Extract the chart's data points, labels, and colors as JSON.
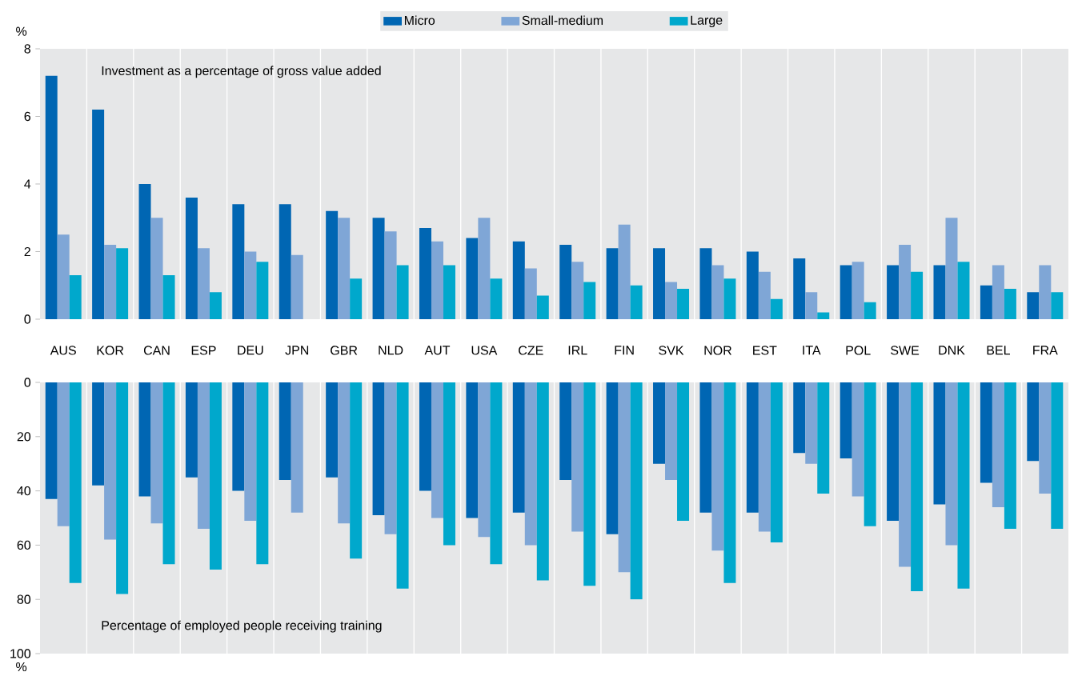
{
  "chart_data": [
    {
      "type": "bar",
      "ylabel": "%",
      "annotations": [
        "Investment as a percentage of gross value added"
      ],
      "categories": [
        "AUS",
        "KOR",
        "CAN",
        "ESP",
        "DEU",
        "JPN",
        "GBR",
        "NLD",
        "AUT",
        "USA",
        "CZE",
        "IRL",
        "FIN",
        "SVK",
        "NOR",
        "EST",
        "ITA",
        "POL",
        "SWE",
        "DNK",
        "BEL",
        "FRA"
      ],
      "series": [
        {
          "name": "Micro",
          "color": "#0066b3",
          "values": [
            7.2,
            6.2,
            4.0,
            3.6,
            3.4,
            3.4,
            3.2,
            3.0,
            2.7,
            2.4,
            2.3,
            2.2,
            2.1,
            2.1,
            2.1,
            2.0,
            1.8,
            1.6,
            1.6,
            1.6,
            1.0,
            0.8
          ]
        },
        {
          "name": "Small-medium",
          "color": "#7fa6d6",
          "values": [
            2.5,
            2.2,
            3.0,
            2.1,
            2.0,
            1.9,
            3.0,
            2.6,
            2.3,
            3.0,
            1.5,
            1.7,
            2.8,
            1.1,
            1.6,
            1.4,
            0.8,
            1.7,
            2.2,
            3.0,
            1.6,
            1.6
          ]
        },
        {
          "name": "Large",
          "color": "#00a8cc",
          "values": [
            1.3,
            2.1,
            1.3,
            0.8,
            1.7,
            null,
            1.2,
            1.6,
            1.6,
            1.2,
            0.7,
            1.1,
            1.0,
            0.9,
            1.2,
            0.6,
            0.2,
            0.5,
            1.4,
            1.7,
            0.9,
            0.8
          ]
        }
      ],
      "ylim": [
        0,
        8
      ],
      "yticks": [
        0,
        2,
        4,
        6,
        8
      ],
      "grid": "x",
      "legend": "top"
    },
    {
      "type": "bar",
      "ylabel": "%",
      "annotations": [
        "Percentage of employed people receiving  training"
      ],
      "categories": [
        null,
        null,
        null,
        null,
        null,
        null,
        null,
        null,
        null,
        null,
        null,
        null,
        null,
        null,
        null,
        null,
        null,
        null,
        null,
        null,
        null,
        null
      ],
      "series": [
        {
          "color": "#0066b3",
          "values": [
            43,
            38,
            42,
            35,
            40,
            36,
            35,
            49,
            40,
            50,
            48,
            36,
            56,
            30,
            48,
            48,
            26,
            28,
            51,
            45,
            37,
            29
          ]
        },
        {
          "color": "#7fa6d6",
          "values": [
            53,
            58,
            52,
            54,
            51,
            48,
            52,
            56,
            50,
            57,
            60,
            55,
            70,
            36,
            62,
            55,
            30,
            42,
            68,
            60,
            46,
            41
          ]
        },
        {
          "color": "#00a8cc",
          "values": [
            74,
            78,
            67,
            69,
            67,
            null,
            65,
            76,
            60,
            67,
            73,
            75,
            80,
            51,
            74,
            59,
            41,
            53,
            77,
            76,
            54,
            54
          ]
        }
      ],
      "ylim": [
        100,
        0
      ],
      "yticks": [
        0,
        20,
        40,
        60,
        80,
        100
      ],
      "grid": "x",
      "tick_labels": "y"
    }
  ]
}
